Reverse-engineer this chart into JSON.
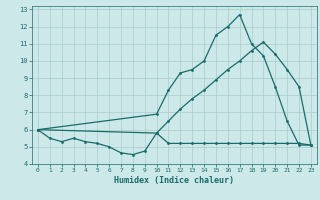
{
  "title": "",
  "xlabel": "Humidex (Indice chaleur)",
  "bg_color": "#cce8e8",
  "grid_color": "#aacccc",
  "line_color": "#1a6b6b",
  "xlim": [
    -0.5,
    23.5
  ],
  "ylim": [
    4,
    13.2
  ],
  "yticks": [
    4,
    5,
    6,
    7,
    8,
    9,
    10,
    11,
    12,
    13
  ],
  "xticks": [
    0,
    1,
    2,
    3,
    4,
    5,
    6,
    7,
    8,
    9,
    10,
    11,
    12,
    13,
    14,
    15,
    16,
    17,
    18,
    19,
    20,
    21,
    22,
    23
  ],
  "line1_x": [
    0,
    1,
    2,
    3,
    4,
    5,
    6,
    7,
    8,
    9,
    10,
    11,
    12,
    13,
    14,
    15,
    16,
    17,
    18,
    19,
    20,
    21,
    22,
    23
  ],
  "line1_y": [
    6.0,
    5.5,
    5.3,
    5.5,
    5.3,
    5.2,
    5.0,
    4.65,
    4.55,
    4.75,
    5.8,
    5.2,
    5.2,
    5.2,
    5.2,
    5.2,
    5.2,
    5.2,
    5.2,
    5.2,
    5.2,
    5.2,
    5.2,
    5.1
  ],
  "line2_x": [
    0,
    10,
    11,
    12,
    13,
    14,
    15,
    16,
    17,
    18,
    19,
    20,
    21,
    22,
    23
  ],
  "line2_y": [
    6.0,
    5.8,
    6.5,
    7.2,
    7.8,
    8.3,
    8.9,
    9.5,
    10.0,
    10.6,
    11.1,
    10.4,
    9.5,
    8.5,
    5.1
  ],
  "line3_x": [
    0,
    10,
    11,
    12,
    13,
    14,
    15,
    16,
    17,
    18,
    19,
    20,
    21,
    22,
    23
  ],
  "line3_y": [
    6.0,
    6.9,
    8.3,
    9.3,
    9.5,
    10.0,
    11.5,
    12.0,
    12.7,
    11.0,
    10.3,
    8.5,
    6.5,
    5.1,
    5.1
  ],
  "marker_size": 2.0,
  "line_width": 0.9
}
